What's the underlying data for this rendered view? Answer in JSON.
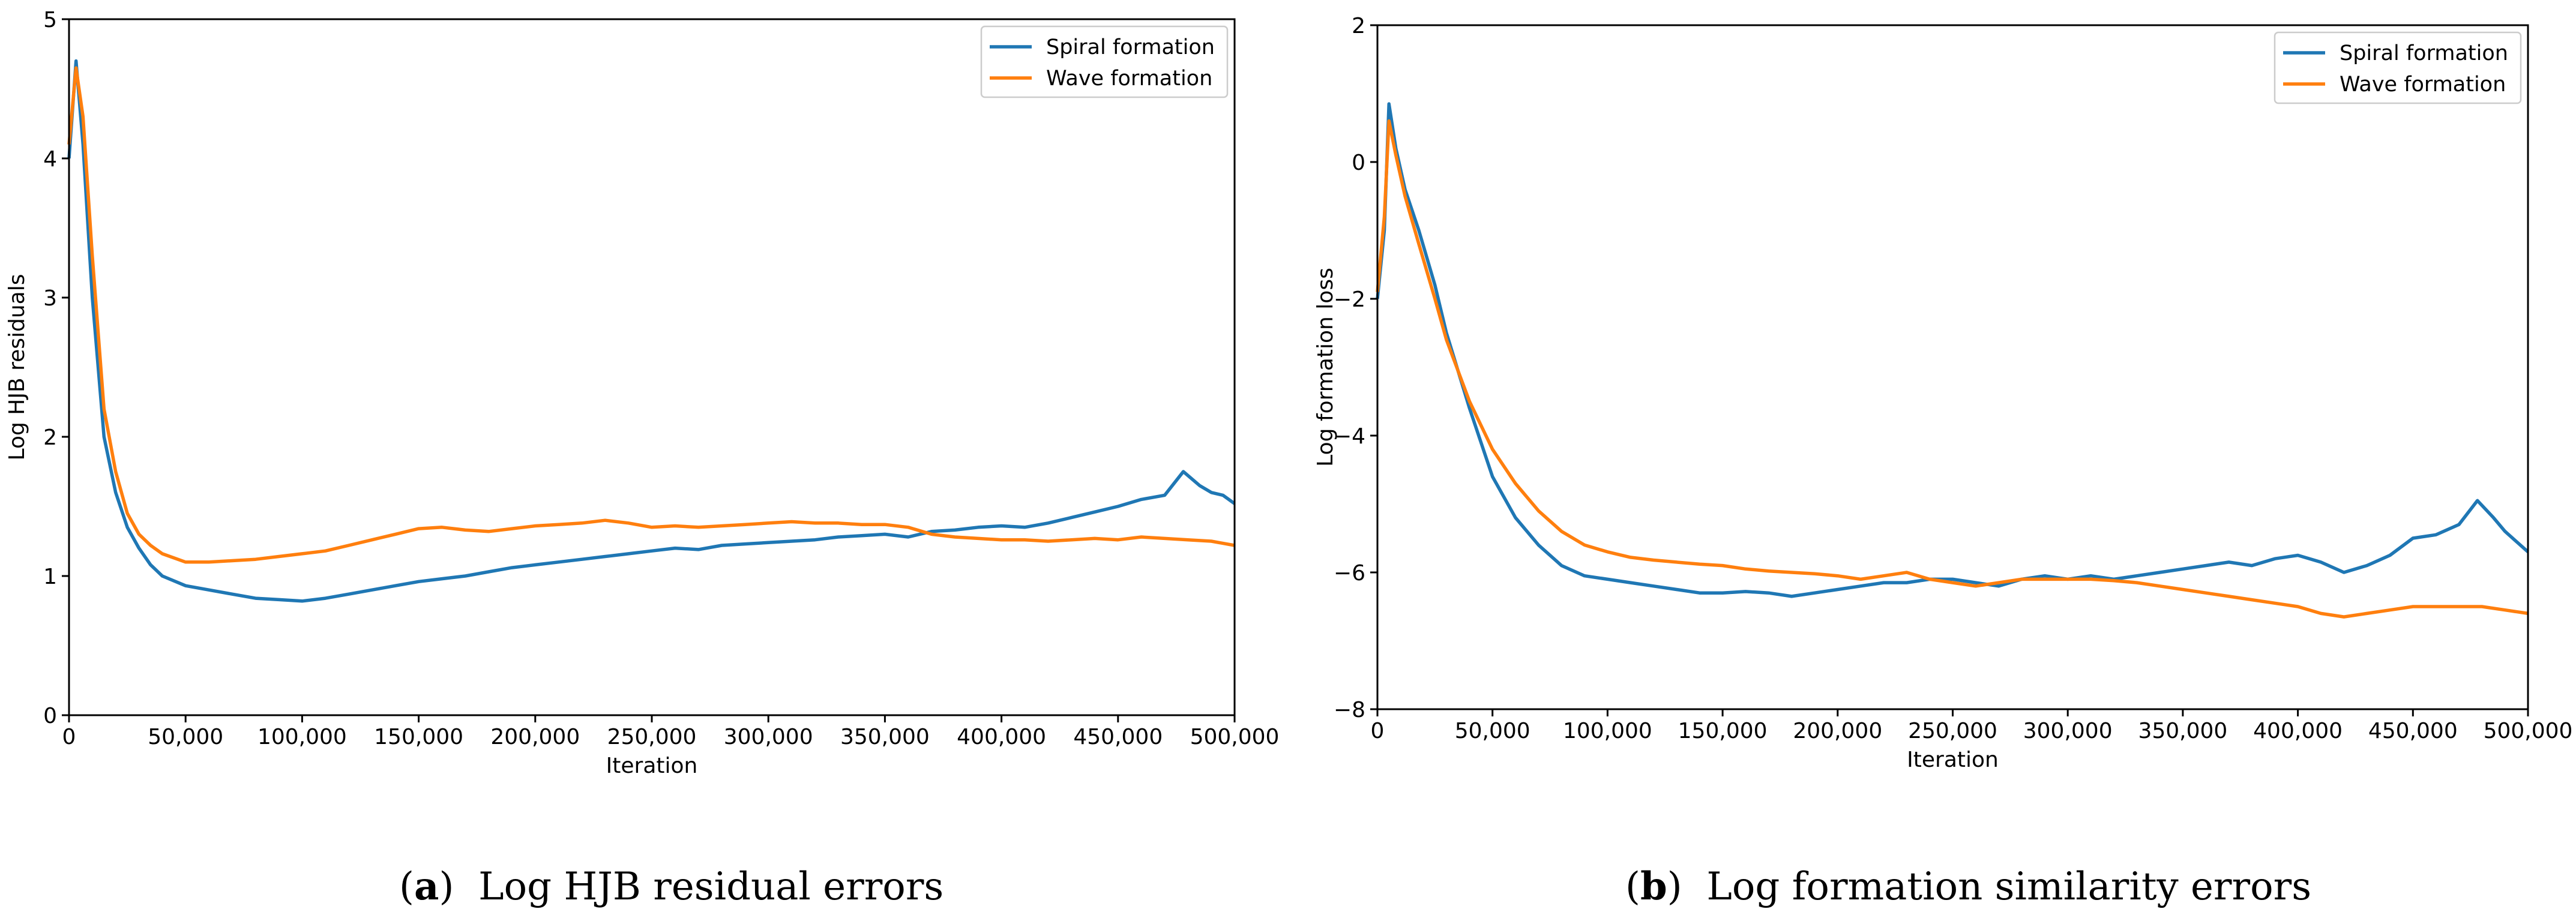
{
  "colors": {
    "series1": "#1f77b4",
    "series2": "#ff7f0e",
    "axis": "#000000",
    "legend_border": "#cccccc"
  },
  "captions": [
    {
      "tag": "a",
      "text": "Log HJB residual errors"
    },
    {
      "tag": "b",
      "text": "Log formation similarity errors"
    }
  ],
  "chart_data": [
    {
      "type": "line",
      "title": "",
      "xlabel": "Iteration",
      "ylabel": "Log HJB residuals",
      "xlim": [
        0,
        500000
      ],
      "ylim": [
        0,
        5
      ],
      "xticks": [
        0,
        50000,
        100000,
        150000,
        200000,
        250000,
        300000,
        350000,
        400000,
        450000,
        500000
      ],
      "xtick_labels": [
        "0",
        "50,000",
        "100,000",
        "150,000",
        "200,000",
        "250,000",
        "300,000",
        "350,000",
        "400,000",
        "450,000",
        "500,000"
      ],
      "yticks": [
        0,
        1,
        2,
        3,
        4,
        5
      ],
      "ytick_labels": [
        "0",
        "1",
        "2",
        "3",
        "4",
        "5"
      ],
      "legend_position": "top-right",
      "series": [
        {
          "name": "Spiral formation",
          "x": [
            0,
            3000,
            6000,
            10000,
            15000,
            20000,
            25000,
            30000,
            35000,
            40000,
            50000,
            60000,
            70000,
            80000,
            90000,
            100000,
            110000,
            120000,
            130000,
            140000,
            150000,
            160000,
            170000,
            180000,
            190000,
            200000,
            210000,
            220000,
            230000,
            240000,
            250000,
            260000,
            270000,
            280000,
            290000,
            300000,
            310000,
            320000,
            330000,
            340000,
            350000,
            360000,
            370000,
            380000,
            390000,
            400000,
            410000,
            420000,
            430000,
            440000,
            450000,
            460000,
            470000,
            478000,
            485000,
            490000,
            495000,
            500000
          ],
          "y": [
            4.0,
            4.7,
            4.1,
            3.0,
            2.0,
            1.6,
            1.35,
            1.2,
            1.08,
            1.0,
            0.93,
            0.9,
            0.87,
            0.84,
            0.83,
            0.82,
            0.84,
            0.87,
            0.9,
            0.93,
            0.96,
            0.98,
            1.0,
            1.03,
            1.06,
            1.08,
            1.1,
            1.12,
            1.14,
            1.16,
            1.18,
            1.2,
            1.19,
            1.22,
            1.23,
            1.24,
            1.25,
            1.26,
            1.28,
            1.29,
            1.3,
            1.28,
            1.32,
            1.33,
            1.35,
            1.36,
            1.35,
            1.38,
            1.42,
            1.46,
            1.5,
            1.55,
            1.58,
            1.75,
            1.65,
            1.6,
            1.58,
            1.52
          ]
        },
        {
          "name": "Wave formation",
          "x": [
            0,
            3000,
            6000,
            10000,
            15000,
            20000,
            25000,
            30000,
            35000,
            40000,
            50000,
            60000,
            70000,
            80000,
            90000,
            100000,
            110000,
            120000,
            130000,
            140000,
            150000,
            160000,
            170000,
            180000,
            190000,
            200000,
            210000,
            220000,
            230000,
            240000,
            250000,
            260000,
            270000,
            280000,
            290000,
            300000,
            310000,
            320000,
            330000,
            340000,
            350000,
            360000,
            370000,
            380000,
            390000,
            400000,
            410000,
            420000,
            430000,
            440000,
            450000,
            460000,
            470000,
            480000,
            490000,
            500000
          ],
          "y": [
            4.1,
            4.65,
            4.3,
            3.3,
            2.2,
            1.75,
            1.45,
            1.3,
            1.22,
            1.16,
            1.1,
            1.1,
            1.11,
            1.12,
            1.14,
            1.16,
            1.18,
            1.22,
            1.26,
            1.3,
            1.34,
            1.35,
            1.33,
            1.32,
            1.34,
            1.36,
            1.37,
            1.38,
            1.4,
            1.38,
            1.35,
            1.36,
            1.35,
            1.36,
            1.37,
            1.38,
            1.39,
            1.38,
            1.38,
            1.37,
            1.37,
            1.35,
            1.3,
            1.28,
            1.27,
            1.26,
            1.26,
            1.25,
            1.26,
            1.27,
            1.26,
            1.28,
            1.27,
            1.26,
            1.25,
            1.22
          ]
        }
      ]
    },
    {
      "type": "line",
      "title": "",
      "xlabel": "Iteration",
      "ylabel": "Log formation loss",
      "xlim": [
        0,
        500000
      ],
      "ylim": [
        -8,
        2
      ],
      "xticks": [
        0,
        50000,
        100000,
        150000,
        200000,
        250000,
        300000,
        350000,
        400000,
        450000,
        500000
      ],
      "xtick_labels": [
        "0",
        "50,000",
        "100,000",
        "150,000",
        "200,000",
        "250,000",
        "300,000",
        "350,000",
        "400,000",
        "450,000",
        "500,000"
      ],
      "yticks": [
        -8,
        -6,
        -4,
        -2,
        0,
        2
      ],
      "ytick_labels": [
        "−8",
        "−6",
        "−4",
        "−2",
        "0",
        "2"
      ],
      "legend_position": "top-right",
      "series": [
        {
          "name": "Spiral formation",
          "x": [
            0,
            3000,
            5000,
            8000,
            12000,
            18000,
            25000,
            30000,
            40000,
            50000,
            60000,
            70000,
            80000,
            90000,
            100000,
            110000,
            120000,
            130000,
            140000,
            150000,
            160000,
            170000,
            180000,
            190000,
            200000,
            210000,
            220000,
            230000,
            240000,
            250000,
            260000,
            270000,
            280000,
            290000,
            300000,
            310000,
            320000,
            330000,
            340000,
            350000,
            360000,
            370000,
            380000,
            390000,
            400000,
            410000,
            420000,
            430000,
            440000,
            450000,
            460000,
            470000,
            478000,
            485000,
            490000,
            495000,
            500000
          ],
          "y": [
            -2.0,
            -1.0,
            0.85,
            0.2,
            -0.4,
            -1.0,
            -1.8,
            -2.5,
            -3.6,
            -4.6,
            -5.2,
            -5.6,
            -5.9,
            -6.05,
            -6.1,
            -6.15,
            -6.2,
            -6.25,
            -6.3,
            -6.3,
            -6.28,
            -6.3,
            -6.35,
            -6.3,
            -6.25,
            -6.2,
            -6.15,
            -6.15,
            -6.1,
            -6.1,
            -6.15,
            -6.2,
            -6.1,
            -6.05,
            -6.1,
            -6.05,
            -6.1,
            -6.05,
            -6.0,
            -5.95,
            -5.9,
            -5.85,
            -5.9,
            -5.8,
            -5.75,
            -5.85,
            -6.0,
            -5.9,
            -5.75,
            -5.5,
            -5.45,
            -5.3,
            -4.95,
            -5.2,
            -5.4,
            -5.55,
            -5.7
          ]
        },
        {
          "name": "Wave formation",
          "x": [
            0,
            3000,
            5000,
            8000,
            12000,
            18000,
            25000,
            30000,
            40000,
            50000,
            60000,
            70000,
            80000,
            90000,
            100000,
            110000,
            120000,
            130000,
            140000,
            150000,
            160000,
            170000,
            180000,
            190000,
            200000,
            210000,
            220000,
            230000,
            240000,
            250000,
            260000,
            270000,
            280000,
            290000,
            300000,
            310000,
            320000,
            330000,
            340000,
            350000,
            360000,
            370000,
            380000,
            390000,
            400000,
            410000,
            420000,
            430000,
            440000,
            450000,
            460000,
            470000,
            480000,
            490000,
            500000
          ],
          "y": [
            -1.9,
            -0.8,
            0.6,
            0.1,
            -0.5,
            -1.2,
            -2.0,
            -2.6,
            -3.5,
            -4.2,
            -4.7,
            -5.1,
            -5.4,
            -5.6,
            -5.7,
            -5.78,
            -5.82,
            -5.85,
            -5.88,
            -5.9,
            -5.95,
            -5.98,
            -6.0,
            -6.02,
            -6.05,
            -6.1,
            -6.05,
            -6.0,
            -6.1,
            -6.15,
            -6.2,
            -6.15,
            -6.1,
            -6.1,
            -6.1,
            -6.1,
            -6.12,
            -6.15,
            -6.2,
            -6.25,
            -6.3,
            -6.35,
            -6.4,
            -6.45,
            -6.5,
            -6.6,
            -6.65,
            -6.6,
            -6.55,
            -6.5,
            -6.5,
            -6.5,
            -6.5,
            -6.55,
            -6.6
          ]
        }
      ]
    }
  ]
}
